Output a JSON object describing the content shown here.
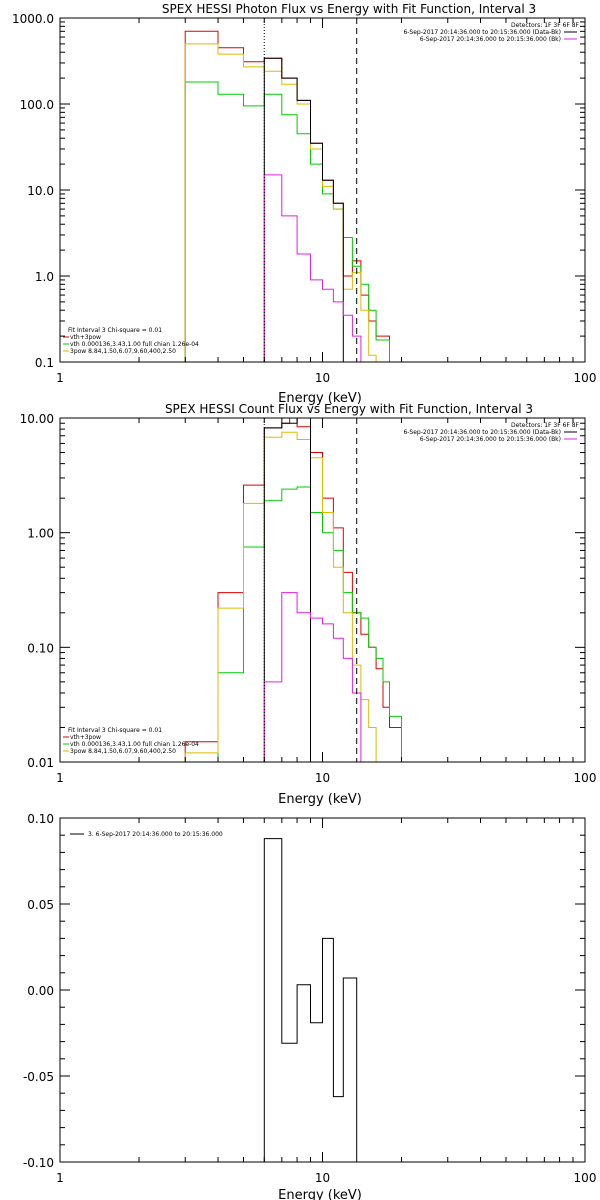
{
  "chart_data": [
    {
      "type": "line",
      "id": "p1",
      "title": "SPEX HESSI Photon Flux vs Energy with Fit Function, Interval 3",
      "xlabel": "Energy (keV)",
      "ylabel": "",
      "xscale": "log",
      "yscale": "log",
      "xlim": [
        1,
        100
      ],
      "ylim": [
        0.1,
        1000
      ],
      "xticks": [
        {
          "v": 1,
          "label": "1"
        },
        {
          "v": 10,
          "label": "10"
        },
        {
          "v": 100,
          "label": "100"
        }
      ],
      "yticks": [
        {
          "v": 0.1,
          "label": "0.1"
        },
        {
          "v": 1,
          "label": "1.0"
        },
        {
          "v": 10,
          "label": "10.0"
        },
        {
          "v": 100,
          "label": "100.0"
        },
        {
          "v": 1000,
          "label": "1000.0"
        }
      ],
      "vlines": [
        {
          "x": 6.0,
          "style": "dotted"
        },
        {
          "x": 13.5,
          "style": "dashed"
        }
      ],
      "infobox": [
        {
          "text": "Detectors: 1F 3F 6F 8F",
          "color": ""
        },
        {
          "text": "6-Sep-2017 20:14:36.000 to 20:15:36.000 (Data-Bk)",
          "color": "#000000"
        },
        {
          "text": "6-Sep-2017 20:14:36.000 to 20:15:36.000 (Bk)",
          "color": "#e020e0"
        }
      ],
      "fit_box": [
        {
          "text": "Fit Interval  3    Chi-square = 0.01",
          "color": ""
        },
        {
          "text": "vth+3pow",
          "color": "#dd0000"
        },
        {
          "text": "vth 0.000136,3.43,1.00   full chian 1.26e-04",
          "color": "#00cc00"
        },
        {
          "text": "3pow 8.84,1.50,6.07,9.60,400,2.50",
          "color": "#ddbb00"
        }
      ],
      "series": [
        {
          "color": "#dd0000",
          "edges": [
            3,
            4,
            5,
            6,
            7,
            8,
            9,
            10,
            11,
            12,
            13,
            14,
            15,
            16,
            18,
            20,
            22
          ],
          "values": [
            700,
            450,
            310,
            340,
            200,
            110,
            35,
            13,
            7,
            1.0,
            1.5,
            0.6,
            0.3,
            0.2,
            0.1,
            null
          ]
        },
        {
          "color": "#00cc00",
          "edges": [
            3,
            4,
            5,
            6,
            7,
            8,
            9,
            10,
            11,
            12,
            13,
            14,
            15,
            16,
            18,
            20,
            22
          ],
          "values": [
            180,
            130,
            95,
            130,
            75,
            45,
            20,
            9,
            6,
            2.8,
            1.3,
            0.8,
            0.4,
            0.18,
            0.1,
            null
          ]
        },
        {
          "color": "#ddbb00",
          "edges": [
            3,
            4,
            5,
            6,
            7,
            8,
            9,
            10,
            11,
            12,
            13,
            14,
            15,
            16,
            18,
            20,
            22
          ],
          "values": [
            500,
            380,
            270,
            240,
            170,
            100,
            30,
            11,
            6,
            0.7,
            1.1,
            0.4,
            0.12,
            0.1,
            null,
            null
          ]
        },
        {
          "color": "#000000",
          "edges": [
            3,
            4,
            5,
            6,
            7,
            8,
            9,
            10,
            11,
            12,
            13,
            14,
            15,
            16,
            18,
            20,
            22
          ],
          "values": [
            null,
            null,
            null,
            340,
            200,
            110,
            35,
            13,
            7,
            null,
            null,
            null,
            null,
            null,
            null,
            null
          ]
        },
        {
          "color": "#e020e0",
          "edges": [
            6,
            7,
            8,
            9,
            10,
            11,
            12,
            13,
            14,
            15,
            16,
            18
          ],
          "values": [
            15,
            5,
            1.8,
            0.9,
            0.7,
            0.5,
            0.35,
            0.2,
            null,
            null,
            null
          ]
        }
      ]
    },
    {
      "type": "line",
      "id": "p2",
      "title": "SPEX HESSI Count Flux vs Energy with Fit Function, Interval 3",
      "xlabel": "Energy (keV)",
      "ylabel": "",
      "xscale": "log",
      "yscale": "log",
      "xlim": [
        1,
        100
      ],
      "ylim": [
        0.01,
        10
      ],
      "xticks": [
        {
          "v": 1,
          "label": "1"
        },
        {
          "v": 10,
          "label": "10"
        },
        {
          "v": 100,
          "label": "100"
        }
      ],
      "yticks": [
        {
          "v": 0.01,
          "label": "0.01"
        },
        {
          "v": 0.1,
          "label": "0.10"
        },
        {
          "v": 1,
          "label": "1.00"
        },
        {
          "v": 10,
          "label": "10.00"
        }
      ],
      "vlines": [
        {
          "x": 6.0,
          "style": "dotted"
        },
        {
          "x": 13.5,
          "style": "dashed"
        }
      ],
      "infobox": [
        {
          "text": "Detectors: 1F 3F 6F 8F",
          "color": ""
        },
        {
          "text": "6-Sep-2017 20:14:36.000 to 20:15:36.000 (Data-Bk)",
          "color": "#000000"
        },
        {
          "text": "6-Sep-2017 20:14:36.000 to 20:15:36.000 (Bk)",
          "color": "#e020e0"
        }
      ],
      "fit_box": [
        {
          "text": "Fit Interval  3    Chi-square = 0.01",
          "color": ""
        },
        {
          "text": "vth+3pow",
          "color": "#dd0000"
        },
        {
          "text": "vth 0.000136,3.43,1.00   full chian 1.26e-04",
          "color": "#00cc00"
        },
        {
          "text": "3pow 8.84,1.50,6.07,9.60,400,2.50",
          "color": "#ddbb00"
        }
      ],
      "series": [
        {
          "color": "#dd0000",
          "edges": [
            3,
            4,
            5,
            6,
            7,
            7.5,
            8,
            9,
            10,
            11,
            12,
            13,
            14,
            15,
            16,
            17,
            18,
            20,
            22
          ],
          "values": [
            0.015,
            0.3,
            2.6,
            8.2,
            9,
            10,
            8.4,
            5,
            2,
            1.1,
            0.45,
            0.2,
            0.13,
            0.1,
            0.065,
            0.03,
            0.02,
            null
          ]
        },
        {
          "color": "#00cc00",
          "edges": [
            3,
            4,
            5,
            6,
            7,
            8,
            9,
            10,
            11,
            12,
            13,
            14,
            15,
            16,
            17,
            18,
            20,
            22
          ],
          "values": [
            null,
            0.06,
            0.75,
            1.9,
            2.4,
            2.5,
            1.5,
            1.0,
            0.7,
            0.3,
            0.2,
            0.18,
            0.1,
            0.08,
            0.05,
            0.025,
            0.01
          ]
        },
        {
          "color": "#ddbb00",
          "edges": [
            3,
            4,
            5,
            6,
            7,
            8,
            9,
            10,
            11,
            12,
            13,
            14,
            15,
            16,
            17,
            18,
            20,
            22
          ],
          "values": [
            0.012,
            0.22,
            1.8,
            6.8,
            7.5,
            6.5,
            4.5,
            1.5,
            0.5,
            0.2,
            0.07,
            0.035,
            0.02,
            0.01,
            null,
            null,
            null
          ]
        },
        {
          "color": "#000000",
          "edges": [
            6,
            7,
            8,
            9
          ],
          "values": [
            8.2,
            9,
            10
          ]
        },
        {
          "color": "#e020e0",
          "edges": [
            5,
            6,
            7,
            8,
            9,
            10,
            11,
            12,
            13,
            14
          ],
          "values": [
            null,
            0.05,
            0.3,
            0.2,
            0.18,
            0.16,
            0.12,
            0.08,
            0.04
          ]
        }
      ]
    },
    {
      "type": "line",
      "id": "p3",
      "title": "",
      "xlabel": "Energy (keV)",
      "ylabel": "",
      "xscale": "log",
      "yscale": "linear",
      "xlim": [
        1,
        100
      ],
      "ylim": [
        -0.1,
        0.1
      ],
      "xticks": [
        {
          "v": 1,
          "label": "1"
        },
        {
          "v": 10,
          "label": "10"
        },
        {
          "v": 100,
          "label": "100"
        }
      ],
      "yticks": [
        {
          "v": -0.1,
          "label": "-0.10"
        },
        {
          "v": -0.05,
          "label": "-0.05"
        },
        {
          "v": 0,
          "label": "0.00"
        },
        {
          "v": 0.05,
          "label": "0.05"
        },
        {
          "v": 0.1,
          "label": "0.10"
        }
      ],
      "legend": "3.  6-Sep-2017 20:14:36.000 to 20:15:36.000",
      "series": [
        {
          "color": "#000000",
          "edges": [
            6,
            7,
            8,
            9,
            10,
            11,
            12,
            13.5
          ],
          "values": [
            0.088,
            -0.031,
            0.003,
            -0.019,
            0.03,
            -0.062,
            0.007
          ]
        }
      ]
    }
  ]
}
